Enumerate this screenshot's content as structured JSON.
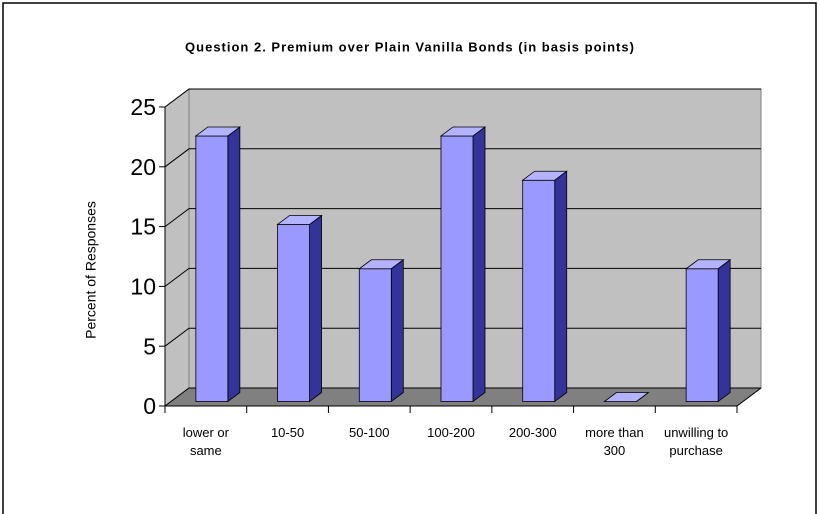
{
  "chart_data": {
    "type": "bar3d",
    "title": "Question 2. Premium over Plain Vanilla Bonds (in basis points)",
    "y_label": "Percent of Responses",
    "categories": [
      "lower or same",
      "10-50",
      "50-100",
      "100-200",
      "200-300",
      "more than 300",
      "unwilling to purchase"
    ],
    "values": [
      22.2,
      14.8,
      11.1,
      22.2,
      18.5,
      0,
      11.1
    ],
    "color": "#9999ff",
    "ylim": [
      0,
      25
    ],
    "yticks": [
      0,
      5,
      10,
      15,
      20,
      25
    ],
    "grid": true
  }
}
